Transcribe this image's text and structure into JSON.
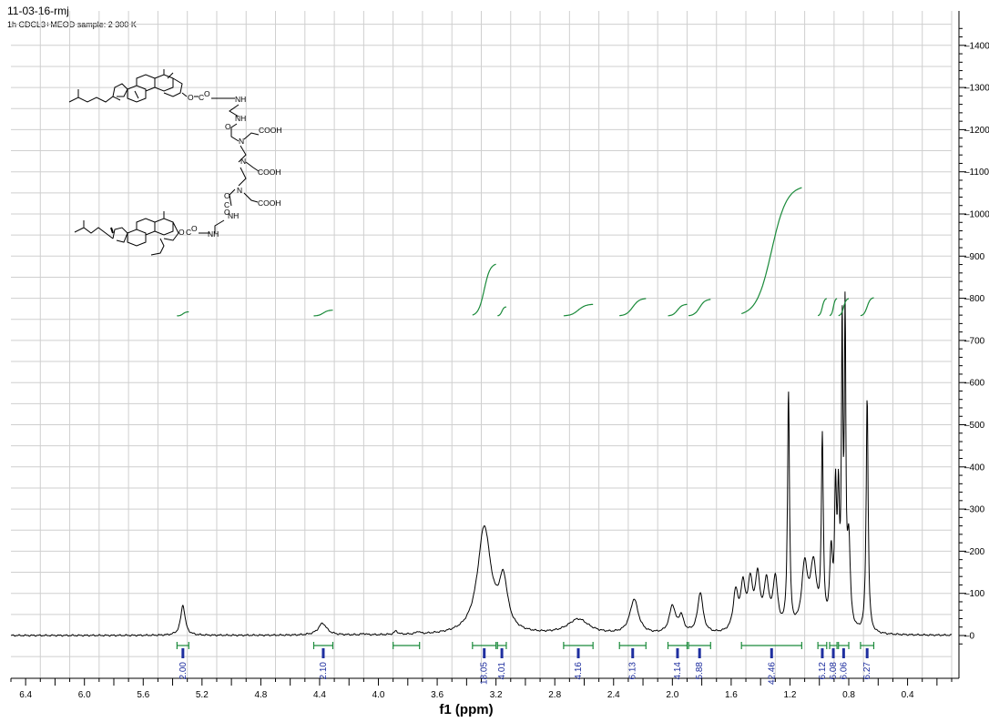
{
  "header": {
    "title": "11-03-16-rmj",
    "subtitle": "1h  CDCL3+MEOD  sample: 2   300 K"
  },
  "molecule": {
    "labels": [
      "O",
      "O",
      "O",
      "NH",
      "NH",
      "O",
      "C",
      "O",
      "N",
      "COOH",
      "N",
      "COOH",
      "N",
      "COOH",
      "O",
      "C",
      "O",
      "NH",
      "O",
      "O",
      "O",
      "NH"
    ]
  },
  "chart_data": {
    "type": "line",
    "title": "",
    "xlabel": "f1 (ppm)",
    "ylabel": "",
    "xlim": [
      6.5,
      0.1
    ],
    "ylim": [
      -20,
      1450
    ],
    "x_ticks": [
      6.4,
      6.0,
      5.6,
      5.2,
      4.8,
      4.4,
      4.0,
      3.6,
      3.2,
      2.8,
      2.4,
      2.0,
      1.6,
      1.2,
      0.8,
      0.4
    ],
    "y_ticks": [
      0,
      100,
      200,
      300,
      400,
      500,
      600,
      700,
      800,
      900,
      1000,
      1100,
      1200,
      1300,
      1400
    ],
    "grid": true,
    "colors": {
      "spectrum": "#000000",
      "integral": "#1a8a3a",
      "label": "#1f2f9f",
      "grid": "#cfcfcf"
    },
    "peaks": [
      {
        "ppm": 5.33,
        "height": 72,
        "width": 0.018
      },
      {
        "ppm": 4.38,
        "height": 28,
        "width": 0.035
      },
      {
        "ppm": 4.1,
        "height": 3,
        "width": 0.015
      },
      {
        "ppm": 3.88,
        "height": 8,
        "width": 0.015
      },
      {
        "ppm": 3.73,
        "height": 6,
        "width": 0.012
      },
      {
        "ppm": 3.28,
        "height": 252,
        "width": 0.055
      },
      {
        "ppm": 3.15,
        "height": 115,
        "width": 0.035
      },
      {
        "ppm": 2.64,
        "height": 36,
        "width": 0.09
      },
      {
        "ppm": 2.26,
        "height": 82,
        "width": 0.035
      },
      {
        "ppm": 2.0,
        "height": 65,
        "width": 0.025
      },
      {
        "ppm": 1.94,
        "height": 38,
        "width": 0.02
      },
      {
        "ppm": 1.81,
        "height": 97,
        "width": 0.022
      },
      {
        "ppm": 1.57,
        "height": 90,
        "width": 0.02
      },
      {
        "ppm": 1.52,
        "height": 100,
        "width": 0.02
      },
      {
        "ppm": 1.47,
        "height": 105,
        "width": 0.02
      },
      {
        "ppm": 1.42,
        "height": 120,
        "width": 0.02
      },
      {
        "ppm": 1.36,
        "height": 110,
        "width": 0.02
      },
      {
        "ppm": 1.3,
        "height": 120,
        "width": 0.02
      },
      {
        "ppm": 1.21,
        "height": 560,
        "width": 0.008
      },
      {
        "ppm": 1.1,
        "height": 150,
        "width": 0.025
      },
      {
        "ppm": 1.04,
        "height": 150,
        "width": 0.025
      },
      {
        "ppm": 0.98,
        "height": 440,
        "width": 0.008
      },
      {
        "ppm": 0.92,
        "height": 170,
        "width": 0.012
      },
      {
        "ppm": 0.89,
        "height": 300,
        "width": 0.008
      },
      {
        "ppm": 0.87,
        "height": 280,
        "width": 0.008
      },
      {
        "ppm": 0.845,
        "height": 680,
        "width": 0.006
      },
      {
        "ppm": 0.825,
        "height": 700,
        "width": 0.006
      },
      {
        "ppm": 0.8,
        "height": 200,
        "width": 0.012
      },
      {
        "ppm": 0.675,
        "height": 560,
        "width": 0.008
      }
    ],
    "integrations": [
      {
        "label": "2.00",
        "from": 5.37,
        "to": 5.29
      },
      {
        "label": "2.10",
        "from": 4.44,
        "to": 4.31
      },
      {
        "label": "",
        "from": 3.9,
        "to": 3.72
      },
      {
        "label": "18.05",
        "from": 3.36,
        "to": 3.2
      },
      {
        "label": "4.01",
        "from": 3.19,
        "to": 3.13
      },
      {
        "label": "4.16",
        "from": 2.74,
        "to": 2.54
      },
      {
        "label": "6.13",
        "from": 2.36,
        "to": 2.18
      },
      {
        "label": "4.14",
        "from": 2.03,
        "to": 1.9
      },
      {
        "label": "5.88",
        "from": 1.89,
        "to": 1.74
      },
      {
        "label": "42.46",
        "from": 1.53,
        "to": 1.12
      },
      {
        "label": "6.12",
        "from": 1.01,
        "to": 0.95
      },
      {
        "label": "6.08",
        "from": 0.93,
        "to": 0.88
      },
      {
        "label": "6.06",
        "from": 0.87,
        "to": 0.8
      },
      {
        "label": "6.27",
        "from": 0.72,
        "to": 0.63
      }
    ]
  }
}
